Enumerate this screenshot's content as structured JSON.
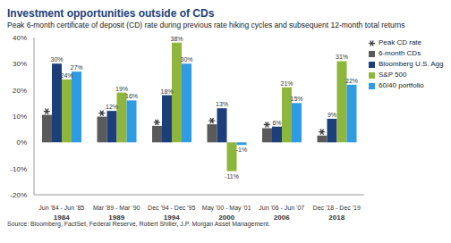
{
  "chart_data": {
    "type": "bar",
    "title": "Investment opportunities outside of CDs",
    "subtitle": "Peak 6-month certificate of deposit (CD) rate during previous rate hiking cycles and subsequent 12-month total returns",
    "source": "Source: Bloomberg, FactSet, Federal Reserve, Robert Shiller, J.P. Morgan Asset Management.",
    "categories": [
      "Jun '84 - Jun '85",
      "Mar '89 - Mar '90",
      "Dec '94 - Dec '95",
      "May '00 - May '01",
      "Jun '06 - Jun '07",
      "Dec '18 - Dec '19"
    ],
    "years": [
      "1984",
      "1989",
      "1994",
      "2000",
      "2006",
      "2018"
    ],
    "series": [
      {
        "name": "Peak CD rate",
        "type": "scatter",
        "marker": "star",
        "color": "#3a3a3a",
        "values": [
          10.5,
          9.8,
          6.3,
          6.9,
          5.4,
          2.6
        ]
      },
      {
        "name": "6-month CDs",
        "type": "bar",
        "color": "#5a5a5a",
        "values": [
          10.5,
          9.8,
          6.3,
          6.9,
          5.4,
          2.6
        ]
      },
      {
        "name": "Bloomberg U.S. Agg",
        "type": "bar",
        "color": "#1c3f7a",
        "values": [
          30,
          12,
          18,
          13,
          6,
          9
        ],
        "value_labels": [
          "30%",
          "12%",
          "18%",
          "13%",
          "6%",
          "9%"
        ]
      },
      {
        "name": "S&P 500",
        "type": "bar",
        "color": "#8fb63c",
        "values": [
          24,
          19,
          38,
          -11,
          21,
          31
        ],
        "value_labels": [
          "24%",
          "19%",
          "38%",
          "-11%",
          "21%",
          "31%"
        ]
      },
      {
        "name": "60/40 portfolio",
        "type": "bar",
        "color": "#2f9be3",
        "values": [
          27,
          16,
          30,
          -1,
          15,
          22
        ],
        "value_labels": [
          "27%",
          "16%",
          "30%",
          "-1%",
          "15%",
          "22%"
        ]
      }
    ],
    "ylim": [
      -20,
      40
    ],
    "yticks": [
      {
        "value": -20,
        "label": "-20%"
      },
      {
        "value": -10,
        "label": "-10%"
      },
      {
        "value": 0,
        "label": "0%"
      },
      {
        "value": 10,
        "label": "10%"
      },
      {
        "value": 20,
        "label": "20%"
      },
      {
        "value": 30,
        "label": "30%"
      },
      {
        "value": 40,
        "label": "40%"
      }
    ],
    "grid": false,
    "legend": "upper right",
    "data_labels": true
  }
}
